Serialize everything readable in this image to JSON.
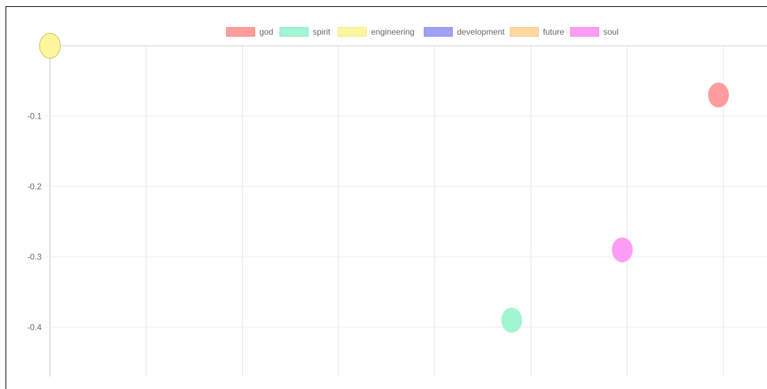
{
  "chart_data": {
    "type": "scatter",
    "legend_position": "top",
    "grid": true,
    "xlim": [
      0,
      7
    ],
    "ylim": [
      -0.47,
      0
    ],
    "y_ticks": [
      -0.1,
      -0.2,
      -0.3,
      -0.4
    ],
    "y_tick_labels": [
      "-0.1",
      "-0.2",
      "-0.3",
      "-0.4"
    ],
    "series": [
      {
        "name": "god",
        "color": "#ff9d9d",
        "points": [
          {
            "x": 6.95,
            "y": -0.07
          }
        ]
      },
      {
        "name": "spirit",
        "color": "#a0f5d2",
        "points": [
          {
            "x": 4.8,
            "y": -0.39
          }
        ]
      },
      {
        "name": "engineering",
        "color": "#fff59d",
        "points": [
          {
            "x": 0,
            "y": 0
          }
        ]
      },
      {
        "name": "development",
        "color": "#a0a0f5",
        "points": []
      },
      {
        "name": "future",
        "color": "#ffd9a0",
        "points": []
      },
      {
        "name": "soul",
        "color": "#ff9df5",
        "points": [
          {
            "x": 5.95,
            "y": -0.29
          }
        ]
      }
    ]
  }
}
